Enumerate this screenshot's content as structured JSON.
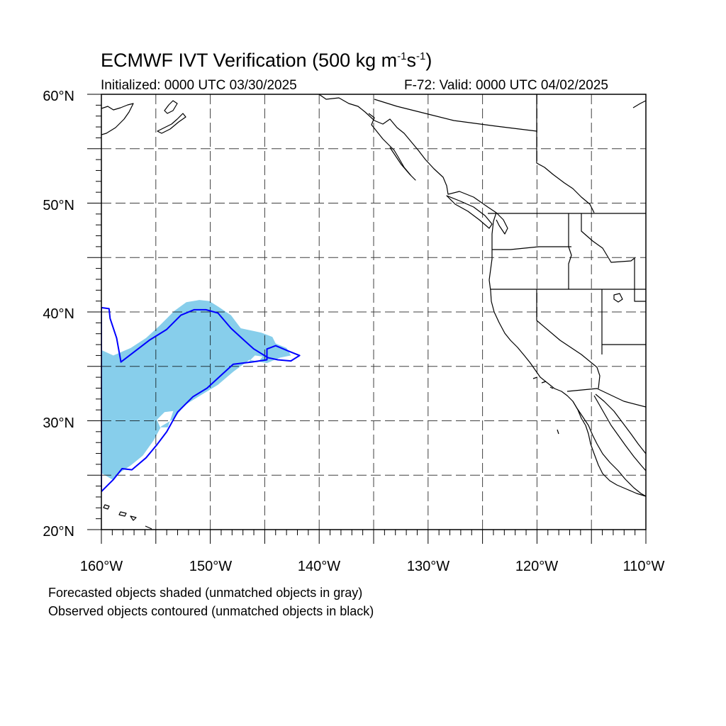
{
  "title": {
    "main": "ECMWF IVT Verification (500 kg m",
    "exp1": "-1",
    "mid": "s",
    "exp2": "-1",
    "end": ")"
  },
  "subtitle_left": "Initialized: 0000 UTC 03/30/2025",
  "subtitle_right": "F-72: Valid: 0000 UTC 04/02/2025",
  "legend_notes": [
    "Forecasted objects shaded (unmatched objects in gray)",
    "Observed objects contoured (unmatched objects in black)"
  ],
  "lat_labels": [
    "60°N",
    "50°N",
    "40°N",
    "30°N",
    "20°N"
  ],
  "lon_labels": [
    "160°W",
    "150°W",
    "140°W",
    "130°W",
    "120°W",
    "110°W"
  ],
  "map_extent": {
    "lon_min": -160,
    "lon_max": -110,
    "lat_min": 20,
    "lat_max": 60
  },
  "colors": {
    "forecast_fill": "#87ceeb",
    "observed_contour": "#0000ff",
    "coastline": "#000000",
    "grid": "#000000"
  },
  "forecast_object_lonlat": [
    [
      -160,
      25.2
    ],
    [
      -159,
      24.6
    ],
    [
      -158.2,
      25.3
    ],
    [
      -157.3,
      25.9
    ],
    [
      -156.2,
      26.8
    ],
    [
      -155.2,
      28.2
    ],
    [
      -154.5,
      29.5
    ],
    [
      -153.3,
      30.2
    ],
    [
      -152.4,
      31.4
    ],
    [
      -150.8,
      32.4
    ],
    [
      -149.3,
      33.3
    ],
    [
      -147.9,
      34.5
    ],
    [
      -146.4,
      35.6
    ],
    [
      -144.8,
      35.3
    ],
    [
      -143.6,
      35.8
    ],
    [
      -142.6,
      36.0
    ],
    [
      -143.0,
      36.7
    ],
    [
      -144.0,
      37.1
    ],
    [
      -144.3,
      37.7
    ],
    [
      -145.3,
      38.1
    ],
    [
      -147.2,
      38.5
    ],
    [
      -148.1,
      39.7
    ],
    [
      -149.3,
      40.5
    ],
    [
      -150.1,
      41.0
    ],
    [
      -151.0,
      41.1
    ],
    [
      -152.2,
      40.9
    ],
    [
      -153.3,
      40.1
    ],
    [
      -154.7,
      38.7
    ],
    [
      -155.9,
      37.6
    ],
    [
      -157.3,
      36.7
    ],
    [
      -158.9,
      36.0
    ],
    [
      -160,
      36.5
    ]
  ],
  "forecast_holes_lonlat": [
    [
      [
        -154.9,
        30.1
      ],
      [
        -154.2,
        30.8
      ],
      [
        -153.4,
        30.9
      ],
      [
        -153.9,
        29.4
      ],
      [
        -154.6,
        29.4
      ]
    ],
    [
      [
        -146.6,
        35.3
      ],
      [
        -145.9,
        36.0
      ],
      [
        -145.2,
        35.9
      ],
      [
        -145.6,
        35.4
      ]
    ]
  ],
  "observed_object_lonlat": [
    [
      -160,
      23.5
    ],
    [
      -159.4,
      24.1
    ],
    [
      -158.9,
      24.6
    ],
    [
      -158.1,
      25.6
    ],
    [
      -157.2,
      25.5
    ],
    [
      -155.9,
      26.6
    ],
    [
      -154.9,
      27.8
    ],
    [
      -154.0,
      29.0
    ],
    [
      -153.0,
      30.8
    ],
    [
      -151.6,
      32.2
    ],
    [
      -150.3,
      33.0
    ],
    [
      -149.1,
      34.1
    ],
    [
      -147.9,
      35.2
    ],
    [
      -146.2,
      35.4
    ],
    [
      -144.8,
      35.6
    ],
    [
      -144.8,
      36.6
    ],
    [
      -144.0,
      36.9
    ],
    [
      -142.8,
      36.4
    ],
    [
      -141.8,
      36.0
    ],
    [
      -142.6,
      35.5
    ],
    [
      -143.8,
      35.6
    ],
    [
      -144.7,
      35.8
    ],
    [
      -146.0,
      36.6
    ],
    [
      -146.9,
      37.4
    ],
    [
      -148.1,
      38.5
    ],
    [
      -149.3,
      39.9
    ],
    [
      -150.4,
      40.2
    ],
    [
      -151.5,
      40.2
    ],
    [
      -152.7,
      39.7
    ],
    [
      -154.0,
      38.4
    ],
    [
      -155.6,
      37.4
    ],
    [
      -157.3,
      36.1
    ],
    [
      -158.2,
      35.4
    ],
    [
      -158.6,
      37.6
    ],
    [
      -159.2,
      39.4
    ],
    [
      -159.3,
      40.3
    ],
    [
      -160,
      40.4
    ]
  ]
}
